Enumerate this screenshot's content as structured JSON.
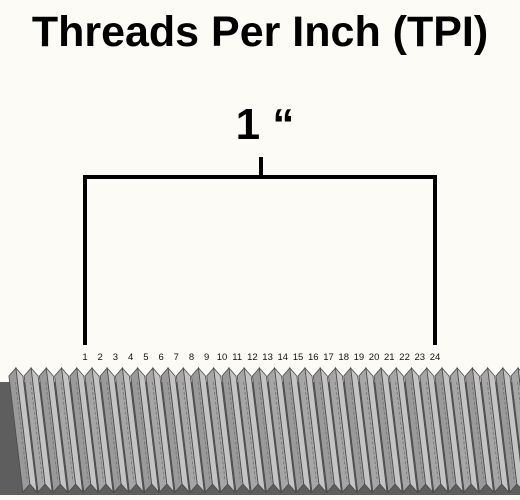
{
  "title": "Threads Per Inch (TPI)",
  "measurement": {
    "label": "1 “"
  },
  "thread_numbers": [
    "1",
    "2",
    "3",
    "4",
    "5",
    "6",
    "7",
    "8",
    "9",
    "10",
    "11",
    "12",
    "13",
    "14",
    "15",
    "16",
    "17",
    "18",
    "19",
    "20",
    "21",
    "22",
    "23",
    "24"
  ],
  "colors": {
    "background": "#fdfbf6",
    "bracket": "#000000",
    "thread_fill": "#9a9a9a",
    "thread_light": "#c4c4c4",
    "thread_dark": "#5e5e5e"
  }
}
